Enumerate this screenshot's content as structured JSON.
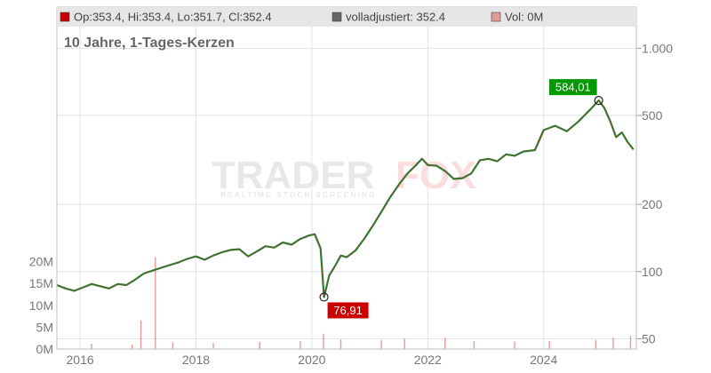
{
  "chart_data": {
    "type": "line",
    "title": "10 Jahre, 1-Tages-Kerzen",
    "legend": {
      "ohlc": {
        "label": "Op:353.4, Hi:353.4, Lo:351.7, Cl:352.4",
        "color": "#cc0000"
      },
      "adjusted": {
        "label": "volladjustiert: 352.4",
        "color": "#666666"
      },
      "volume": {
        "label": "Vol: 0M",
        "color": "#e59a9a"
      }
    },
    "watermark": {
      "brand_left": "TRADER",
      "brand_right": "FOX",
      "tagline": "REALTIME STOCK SCREENING"
    },
    "y_axis": {
      "scale": "log",
      "range": [
        45,
        1250
      ],
      "ticks": [
        {
          "value": 1000,
          "label": "1.000"
        },
        {
          "value": 500,
          "label": "500"
        },
        {
          "value": 200,
          "label": "200"
        },
        {
          "value": 100,
          "label": "100"
        },
        {
          "value": 50,
          "label": "50"
        }
      ]
    },
    "volume_axis": {
      "range": [
        0,
        25
      ],
      "unit": "M",
      "ticks": [
        {
          "value": 20,
          "label": "20M"
        },
        {
          "value": 15,
          "label": "15M"
        },
        {
          "value": 10,
          "label": "10M"
        },
        {
          "value": 5,
          "label": "5M"
        },
        {
          "value": 0,
          "label": "0M"
        }
      ]
    },
    "x_axis": {
      "range": [
        2015.6,
        2025.6
      ],
      "ticks": [
        {
          "value": 2016,
          "label": "2016"
        },
        {
          "value": 2018,
          "label": "2018"
        },
        {
          "value": 2020,
          "label": "2020"
        },
        {
          "value": 2022,
          "label": "2022"
        },
        {
          "value": 2024,
          "label": "2024"
        }
      ]
    },
    "grid": true,
    "series": [
      {
        "points": [
          [
            2015.6,
            87
          ],
          [
            2015.75,
            84
          ],
          [
            2015.9,
            82
          ],
          [
            2016.05,
            85
          ],
          [
            2016.2,
            88
          ],
          [
            2016.35,
            86
          ],
          [
            2016.5,
            84
          ],
          [
            2016.65,
            88
          ],
          [
            2016.8,
            87
          ],
          [
            2016.95,
            92
          ],
          [
            2017.1,
            98
          ],
          [
            2017.25,
            101
          ],
          [
            2017.4,
            104
          ],
          [
            2017.55,
            107
          ],
          [
            2017.7,
            110
          ],
          [
            2017.85,
            114
          ],
          [
            2018.0,
            117
          ],
          [
            2018.15,
            113
          ],
          [
            2018.3,
            118
          ],
          [
            2018.45,
            122
          ],
          [
            2018.6,
            125
          ],
          [
            2018.75,
            126
          ],
          [
            2018.9,
            117
          ],
          [
            2019.05,
            123
          ],
          [
            2019.2,
            130
          ],
          [
            2019.35,
            128
          ],
          [
            2019.5,
            135
          ],
          [
            2019.65,
            132
          ],
          [
            2019.8,
            140
          ],
          [
            2019.95,
            145
          ],
          [
            2020.05,
            147
          ],
          [
            2020.15,
            127
          ],
          [
            2020.21,
            76.91
          ],
          [
            2020.3,
            96
          ],
          [
            2020.4,
            106
          ],
          [
            2020.5,
            118
          ],
          [
            2020.6,
            116
          ],
          [
            2020.75,
            124
          ],
          [
            2020.9,
            140
          ],
          [
            2021.05,
            160
          ],
          [
            2021.2,
            185
          ],
          [
            2021.35,
            215
          ],
          [
            2021.5,
            245
          ],
          [
            2021.65,
            275
          ],
          [
            2021.8,
            300
          ],
          [
            2021.9,
            320
          ],
          [
            2022.0,
            300
          ],
          [
            2022.15,
            298
          ],
          [
            2022.3,
            282
          ],
          [
            2022.45,
            260
          ],
          [
            2022.6,
            262
          ],
          [
            2022.75,
            275
          ],
          [
            2022.9,
            315
          ],
          [
            2023.05,
            320
          ],
          [
            2023.2,
            312
          ],
          [
            2023.35,
            335
          ],
          [
            2023.5,
            330
          ],
          [
            2023.65,
            345
          ],
          [
            2023.85,
            350
          ],
          [
            2024.0,
            430
          ],
          [
            2024.2,
            450
          ],
          [
            2024.4,
            425
          ],
          [
            2024.6,
            470
          ],
          [
            2024.8,
            530
          ],
          [
            2024.95,
            584.01
          ],
          [
            2025.05,
            540
          ],
          [
            2025.15,
            470
          ],
          [
            2025.25,
            400
          ],
          [
            2025.35,
            420
          ],
          [
            2025.45,
            380
          ],
          [
            2025.55,
            352.4
          ]
        ],
        "color": "#2e7d32"
      }
    ],
    "annotations": [
      {
        "label": "584,01",
        "x": 2024.95,
        "y": 584.01,
        "color": "#009900",
        "kind": "high"
      },
      {
        "label": "76,91",
        "x": 2020.21,
        "y": 76.91,
        "color": "#cc0000",
        "kind": "low"
      }
    ],
    "volume": [
      [
        2016.2,
        1.2
      ],
      [
        2016.9,
        1.0
      ],
      [
        2017.05,
        6.5
      ],
      [
        2017.3,
        21
      ],
      [
        2017.6,
        1.5
      ],
      [
        2018.3,
        1.4
      ],
      [
        2019.1,
        1.6
      ],
      [
        2019.8,
        1.8
      ],
      [
        2020.2,
        3.5
      ],
      [
        2020.5,
        2.2
      ],
      [
        2021.2,
        2.0
      ],
      [
        2021.6,
        2.4
      ],
      [
        2022.3,
        2.6
      ],
      [
        2022.8,
        1.8
      ],
      [
        2023.5,
        1.7
      ],
      [
        2024.1,
        1.9
      ],
      [
        2024.9,
        2.1
      ],
      [
        2025.2,
        2.6
      ],
      [
        2025.5,
        3.0
      ]
    ]
  }
}
